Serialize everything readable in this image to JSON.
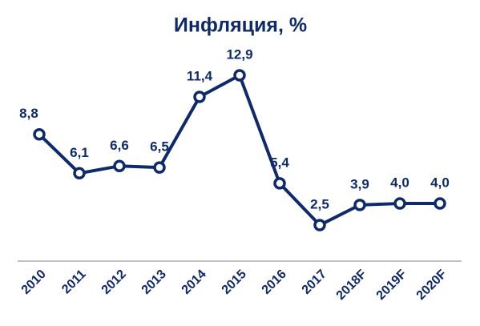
{
  "chart_data": {
    "type": "line",
    "title": "Инфляция, %",
    "categories": [
      "2010",
      "2011",
      "2012",
      "2013",
      "2014",
      "2015",
      "2016",
      "2017",
      "2018F",
      "2019F",
      "2020F"
    ],
    "values": [
      8.8,
      6.1,
      6.6,
      6.5,
      11.4,
      12.9,
      5.4,
      2.5,
      3.9,
      4.0,
      4.0
    ],
    "value_labels": [
      "8,8",
      "6,1",
      "6,6",
      "6,5",
      "11,4",
      "12,9",
      "5,4",
      "2,5",
      "3,9",
      "4,0",
      "4,0"
    ],
    "color": "#0f2a6b"
  }
}
